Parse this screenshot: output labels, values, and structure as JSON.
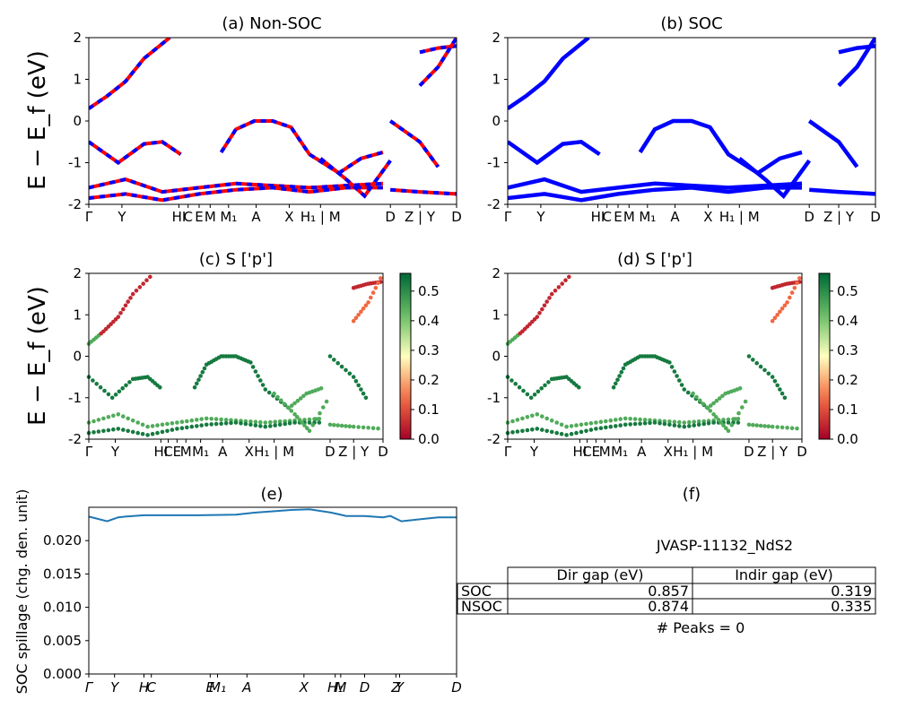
{
  "panels": {
    "a": {
      "title": "(a) Non-SOC",
      "ylabel": "E − E_f (eV)"
    },
    "b": {
      "title": "(b) SOC"
    },
    "c": {
      "title": "(c)  S ['p']",
      "ylabel": "E − E_f (eV)"
    },
    "d": {
      "title": "(d) S ['p']"
    },
    "e": {
      "title": "(e)",
      "ylabel": "SOC spillage (chg. den. unit)"
    },
    "f": {
      "title": "(f)"
    }
  },
  "colors": {
    "nonsoc_red": "#ff0000",
    "nonsoc_blue": "#0000ff",
    "soc_blue": "#0000ff",
    "spillage_line": "#1f77b4",
    "cmap": "RdYlGn"
  },
  "kpath_labels": [
    "Γ",
    "Y",
    "HI",
    "C",
    "E",
    "M",
    "M₁",
    "A",
    "X",
    "H₁ | M",
    "D",
    "Z | Y",
    "D"
  ],
  "colorbar": {
    "ticks": [
      "0.0",
      "0.1",
      "0.2",
      "0.3",
      "0.4",
      "0.5"
    ],
    "range": [
      0.0,
      0.56
    ]
  },
  "info": {
    "material": "JVASP-11132_NdS2",
    "peaks": "# Peaks = 0",
    "table": {
      "headers": [
        "",
        "Dir gap (eV)",
        "Indir gap (eV)"
      ],
      "rows": [
        {
          "label": "SOC",
          "dir": "0.857",
          "indir": "0.319"
        },
        {
          "label": "NSOC",
          "dir": "0.874",
          "indir": "0.335"
        }
      ]
    }
  },
  "chart_data": [
    {
      "type": "line",
      "panel": "a",
      "title": "(a) Non-SOC",
      "ylabel": "E − E_f (eV)",
      "ylim": [
        -2,
        2
      ],
      "yticks": [
        -2,
        -1,
        0,
        1,
        2
      ],
      "x_ticks": [
        "Γ",
        "Y",
        "HI",
        "C",
        "E",
        "M",
        "M₁",
        "A",
        "X",
        "H₁ | M",
        "D",
        "Z | Y",
        "D"
      ],
      "series": [
        {
          "x": [
            0,
            0.05,
            0.1,
            0.15,
            0.22
          ],
          "y": [
            0.3,
            0.6,
            0.95,
            1.5,
            2.0
          ]
        },
        {
          "x": [
            0.36,
            0.4,
            0.45,
            0.5,
            0.55,
            0.6,
            0.68
          ],
          "y": [
            -0.75,
            -0.2,
            0.0,
            0.0,
            -0.15,
            -0.8,
            -1.25
          ]
        },
        {
          "x": [
            0.68,
            0.74,
            0.8
          ],
          "y": [
            -1.25,
            -0.9,
            -0.75
          ]
        },
        {
          "x": [
            0,
            0.08,
            0.15,
            0.2,
            0.25
          ],
          "y": [
            -0.5,
            -1.0,
            -0.55,
            -0.5,
            -0.8
          ]
        },
        {
          "x": [
            0,
            0.1,
            0.2,
            0.3,
            0.4,
            0.5,
            0.6,
            0.7,
            0.8
          ],
          "y": [
            -1.6,
            -1.4,
            -1.7,
            -1.6,
            -1.5,
            -1.55,
            -1.6,
            -1.55,
            -1.5
          ]
        },
        {
          "x": [
            0,
            0.1,
            0.2,
            0.3,
            0.4,
            0.5,
            0.6,
            0.7,
            0.8
          ],
          "y": [
            -1.85,
            -1.75,
            -1.9,
            -1.75,
            -1.65,
            -1.6,
            -1.7,
            -1.6,
            -1.6
          ]
        },
        {
          "x": [
            0.63,
            0.7,
            0.75,
            0.82
          ],
          "y": [
            -0.9,
            -1.4,
            -1.8,
            -0.95
          ]
        },
        {
          "x": [
            0.82,
            0.9,
            0.95
          ],
          "y": [
            0.0,
            -0.5,
            -1.1
          ]
        },
        {
          "x": [
            0.82,
            0.9,
            1.0
          ],
          "y": [
            -1.65,
            -1.7,
            -1.75
          ]
        },
        {
          "x": [
            0.9,
            0.95,
            1.0
          ],
          "y": [
            1.65,
            1.75,
            1.8
          ]
        },
        {
          "x": [
            0.9,
            0.95,
            1.0
          ],
          "y": [
            0.85,
            1.3,
            2.0
          ]
        }
      ]
    },
    {
      "type": "line",
      "panel": "b",
      "title": "(b) SOC",
      "ylim": [
        -2,
        2
      ],
      "yticks": [
        -2,
        -1,
        0,
        1,
        2
      ],
      "x_ticks": [
        "Γ",
        "Y",
        "HI",
        "C",
        "E",
        "M",
        "M₁",
        "A",
        "X",
        "H₁ | M",
        "D",
        "Z | Y",
        "D"
      ]
    },
    {
      "type": "scatter",
      "panel": "c",
      "title": "(c)  S ['p']",
      "ylabel": "E − E_f (eV)",
      "ylim": [
        -2,
        2
      ],
      "yticks": [
        -2,
        -1,
        0,
        1,
        2
      ],
      "colorbar_range": [
        0.0,
        0.56
      ],
      "x_ticks": [
        "Γ",
        "Y",
        "HI",
        "C",
        "E",
        "M",
        "M₁",
        "A",
        "X",
        "H₁ | M",
        "D",
        "Z | Y",
        "D"
      ]
    },
    {
      "type": "scatter",
      "panel": "d",
      "title": "(d) S ['p']",
      "ylim": [
        -2,
        2
      ],
      "yticks": [
        -2,
        -1,
        0,
        1,
        2
      ],
      "colorbar_range": [
        0.0,
        0.56
      ],
      "x_ticks": [
        "Γ",
        "Y",
        "HI",
        "C",
        "E",
        "M",
        "M₁",
        "A",
        "X",
        "H₁ | M",
        "D",
        "Z | Y",
        "D"
      ]
    },
    {
      "type": "line",
      "panel": "e",
      "title": "(e)",
      "ylabel": "SOC spillage (chg. den. unit)",
      "ylim": [
        0.0,
        0.025
      ],
      "yticks": [
        "0.000",
        "0.005",
        "0.010",
        "0.015",
        "0.020"
      ],
      "x_ticks": [
        "Γ",
        "Y",
        "H",
        "C",
        "E",
        "M₁",
        "A",
        "X",
        "H₁",
        "M",
        "D",
        "Z",
        "Y",
        "D"
      ],
      "series": [
        {
          "name": "",
          "x": [
            0,
            0.05,
            0.08,
            0.1,
            0.15,
            0.2,
            0.3,
            0.4,
            0.45,
            0.5,
            0.55,
            0.6,
            0.66,
            0.7,
            0.75,
            0.8,
            0.82,
            0.85,
            0.9,
            0.95,
            1.0
          ],
          "y": [
            0.0236,
            0.0229,
            0.0235,
            0.0236,
            0.0238,
            0.0238,
            0.0238,
            0.0239,
            0.0242,
            0.0244,
            0.0246,
            0.0247,
            0.0242,
            0.0237,
            0.0237,
            0.0235,
            0.0237,
            0.0229,
            0.0232,
            0.0235,
            0.0235
          ]
        }
      ]
    }
  ]
}
